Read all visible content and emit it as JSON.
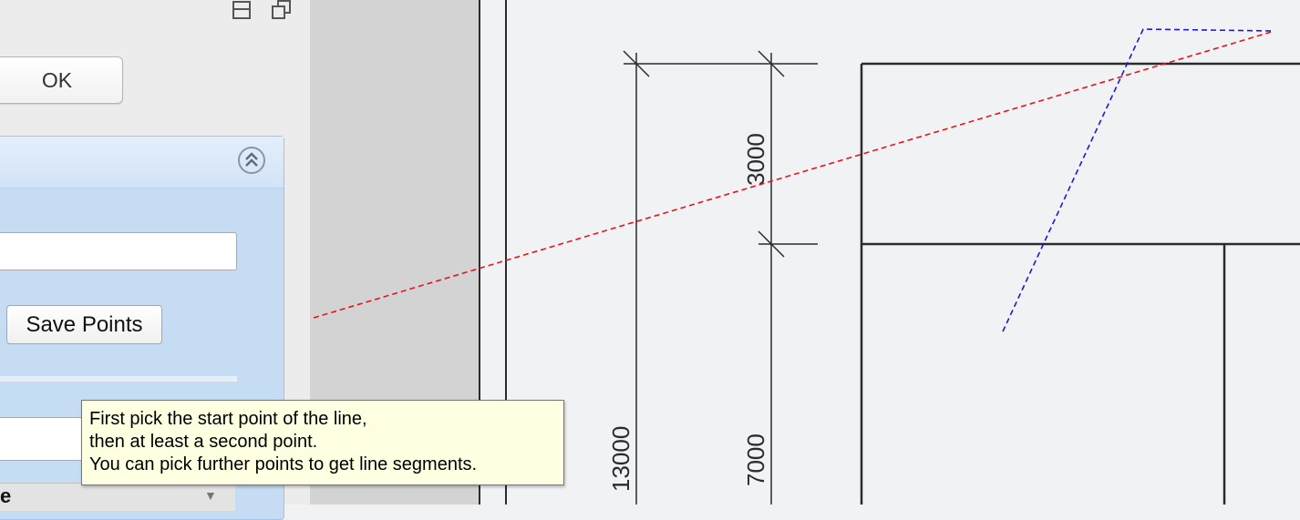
{
  "dialog": {
    "ok_label": "OK",
    "save_points_label": "Save Points",
    "points_field_value": "",
    "bottom_field_label": "",
    "combo_value": "e",
    "combo_arrow": "▼"
  },
  "icons": {
    "window_icon": "panel-layout-icon",
    "restore_icon": "restore-window-icon",
    "collapse_icon": "double-chevron-up-icon"
  },
  "tooltip": {
    "lines": [
      "First pick the start point of the line,",
      "then at least a second point.",
      "You can pick further points to get line segments."
    ]
  },
  "drawing": {
    "dimension_labels": {
      "upper_segment": "3000",
      "total_height": "13000",
      "lower_segment": "7000"
    },
    "colors": {
      "line": "#2b2b2b",
      "preview_line": "#e8141c",
      "construction_line": "#1a1ad6"
    }
  }
}
